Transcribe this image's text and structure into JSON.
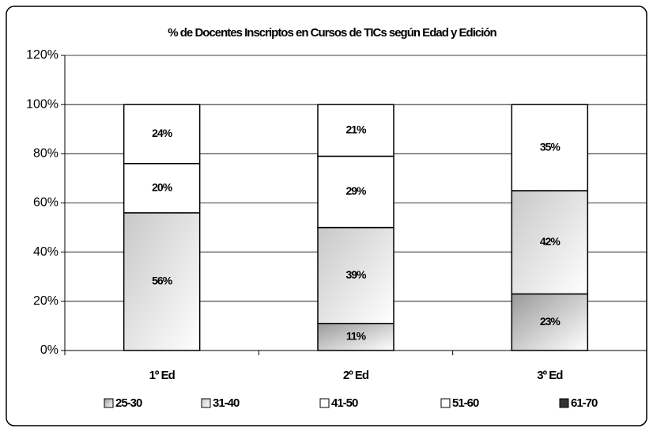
{
  "chart_data": {
    "type": "stacked_bar",
    "title": "% de Docentes Inscriptos en Cursos de TICs según Edad y Edición",
    "categories": [
      "1º Ed",
      "2º Ed",
      "3º Ed"
    ],
    "series": [
      {
        "name": "25-30",
        "color": "#9a9a9a",
        "values": [
          null,
          11,
          23
        ],
        "value_labels": [
          null,
          "11%",
          "23%"
        ]
      },
      {
        "name": "31-40",
        "color": "#c8c8c8",
        "values": [
          56,
          39,
          42
        ],
        "value_labels": [
          "56%",
          "39%",
          "42%"
        ]
      },
      {
        "name": "41-50",
        "color": "#ffffff",
        "values": [
          20,
          29,
          35
        ],
        "value_labels": [
          "20%",
          "29%",
          "35%"
        ]
      },
      {
        "name": "51-60",
        "color": "#ffffff",
        "values": [
          24,
          21,
          null
        ],
        "value_labels": [
          "24%",
          "21%",
          null
        ]
      },
      {
        "name": "61-70",
        "color": "#333333",
        "values": [
          null,
          null,
          null
        ],
        "value_labels": [
          null,
          null,
          null
        ]
      }
    ],
    "ylim": [
      0,
      120
    ],
    "yticks": [
      {
        "value": 0,
        "label": "0%"
      },
      {
        "value": 20,
        "label": "20%"
      },
      {
        "value": 40,
        "label": "40%"
      },
      {
        "value": 60,
        "label": "60%"
      },
      {
        "value": 80,
        "label": "80%"
      },
      {
        "value": 100,
        "label": "100%"
      },
      {
        "value": 120,
        "label": "120%"
      }
    ],
    "grid": true,
    "legend": "bottom"
  }
}
